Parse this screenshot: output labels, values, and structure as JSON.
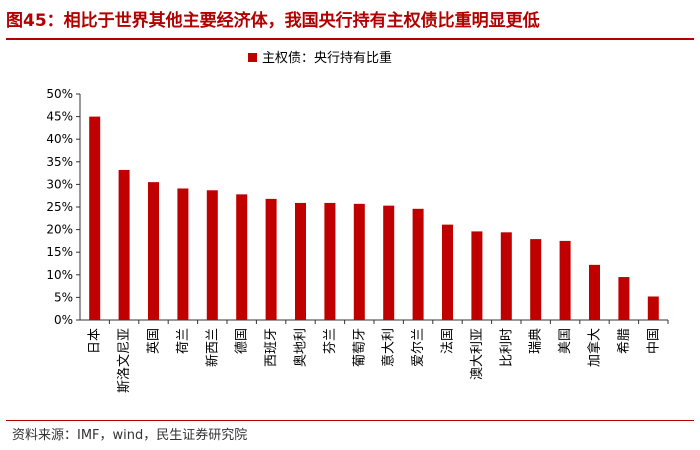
{
  "header": {
    "title": "图45：相比于世界其他主要经济体，我国央行持有主权债比重明显更低"
  },
  "footer": {
    "source": "资料来源：IMF，wind，民生证券研究院"
  },
  "colors": {
    "bar": "#c00000",
    "title": "#b20000",
    "axis": "#333333"
  },
  "chart_data": {
    "type": "bar",
    "categories": [
      "日本",
      "斯洛文尼亚",
      "英国",
      "荷兰",
      "新西兰",
      "德国",
      "西班牙",
      "奥地利",
      "芬兰",
      "葡萄牙",
      "意大利",
      "爱尔兰",
      "法国",
      "澳大利亚",
      "比利时",
      "瑞典",
      "美国",
      "加拿大",
      "希腊",
      "中国"
    ],
    "series": [
      {
        "name": "主权债：央行持有比重",
        "values": [
          45.0,
          33.2,
          30.5,
          29.1,
          28.7,
          27.8,
          26.8,
          25.9,
          25.9,
          25.7,
          25.3,
          24.6,
          21.1,
          19.6,
          19.4,
          17.9,
          17.5,
          12.2,
          9.5,
          5.2
        ]
      }
    ],
    "ylim": [
      0,
      50
    ],
    "yticks": [
      "0%",
      "5%",
      "10%",
      "15%",
      "20%",
      "25%",
      "30%",
      "35%",
      "40%",
      "45%",
      "50%"
    ],
    "grid": false,
    "legend": "top-center"
  }
}
